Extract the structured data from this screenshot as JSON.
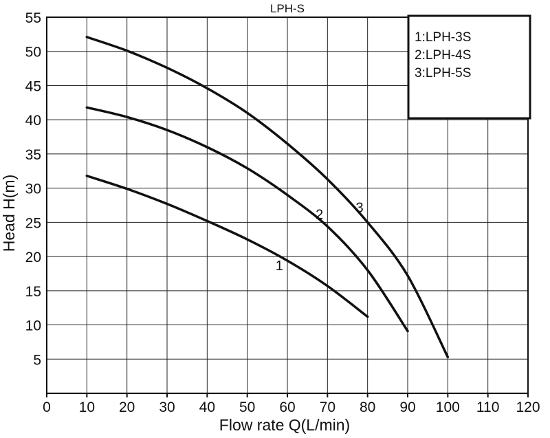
{
  "chart_data": {
    "type": "line",
    "title": "LPH-S",
    "xlabel": "Flow rate Q(L/min)",
    "ylabel": "Head H(m)",
    "xlim": [
      0,
      120
    ],
    "ylim": [
      0,
      55
    ],
    "xticks": [
      0,
      10,
      20,
      30,
      40,
      50,
      60,
      70,
      80,
      90,
      100,
      110,
      120
    ],
    "yticks": [
      5,
      10,
      15,
      20,
      25,
      30,
      35,
      40,
      45,
      50,
      55
    ],
    "grid": true,
    "legend": {
      "placement": "top-right",
      "entries": [
        "1:LPH-3S",
        "2:LPH-4S",
        "3:LPH-5S"
      ]
    },
    "series": [
      {
        "label": "1",
        "label_at": [
          58,
          18
        ],
        "points": [
          [
            10,
            31.8
          ],
          [
            20,
            29.9
          ],
          [
            30,
            27.7
          ],
          [
            40,
            25.2
          ],
          [
            50,
            22.5
          ],
          [
            60,
            19.4
          ],
          [
            70,
            15.7
          ],
          [
            80,
            11.2
          ]
        ]
      },
      {
        "label": "2",
        "label_at": [
          68,
          25.5
        ],
        "points": [
          [
            10,
            41.8
          ],
          [
            20,
            40.4
          ],
          [
            30,
            38.5
          ],
          [
            40,
            36.0
          ],
          [
            50,
            32.9
          ],
          [
            60,
            29.0
          ],
          [
            70,
            24.4
          ],
          [
            80,
            18.0
          ],
          [
            90,
            9.1
          ]
        ]
      },
      {
        "label": "3",
        "label_at": [
          78,
          26.5
        ],
        "points": [
          [
            10,
            52.1
          ],
          [
            20,
            50.1
          ],
          [
            30,
            47.6
          ],
          [
            40,
            44.6
          ],
          [
            50,
            41.0
          ],
          [
            60,
            36.5
          ],
          [
            70,
            31.3
          ],
          [
            80,
            25.0
          ],
          [
            90,
            17.2
          ],
          [
            100,
            5.3
          ]
        ]
      }
    ]
  }
}
